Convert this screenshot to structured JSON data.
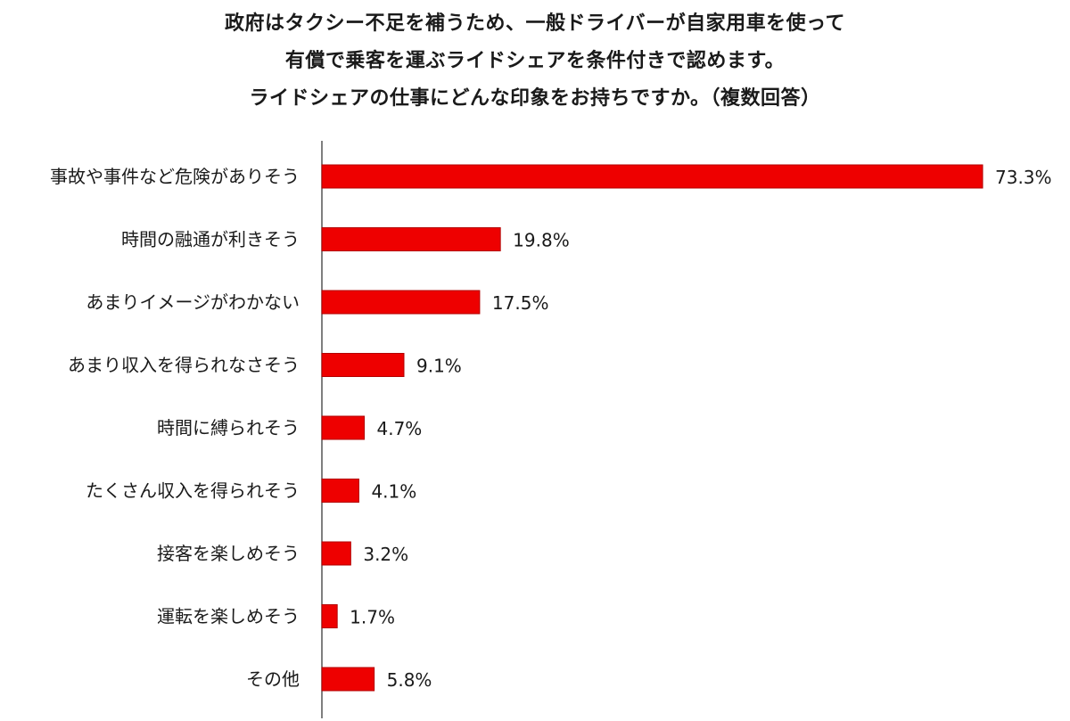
{
  "chart_data": {
    "type": "bar",
    "orientation": "horizontal",
    "title": [
      "政府はタクシー不足を補うため、一般ドライバーが自家用車を使って",
      "有償で乗客を運ぶライドシェアを条件付きで認めます。",
      "ライドシェアの仕事にどんな印象をお持ちですか。（複数回答）"
    ],
    "categories": [
      "事故や事件など危険がありそう",
      "時間の融通が利きそう",
      "あまりイメージがわかない",
      "あまり収入を得られなさそう",
      "時間に縛られそう",
      "たくさん収入を得られそう",
      "接客を楽しめそう",
      "運転を楽しめそう",
      "その他"
    ],
    "values": [
      73.3,
      19.8,
      17.5,
      9.1,
      4.7,
      4.1,
      3.2,
      1.7,
      5.8
    ],
    "value_labels": [
      "73.3%",
      "19.8%",
      "17.5%",
      "9.1%",
      "4.7%",
      "4.1%",
      "3.2%",
      "1.7%",
      "5.8%"
    ],
    "unit": "%",
    "xlim": [
      0,
      73.3
    ],
    "grid": false,
    "legend": "none",
    "colors": {
      "bar": "#ee0000",
      "bar_edge": "#b30000",
      "axis": "#555555"
    }
  }
}
